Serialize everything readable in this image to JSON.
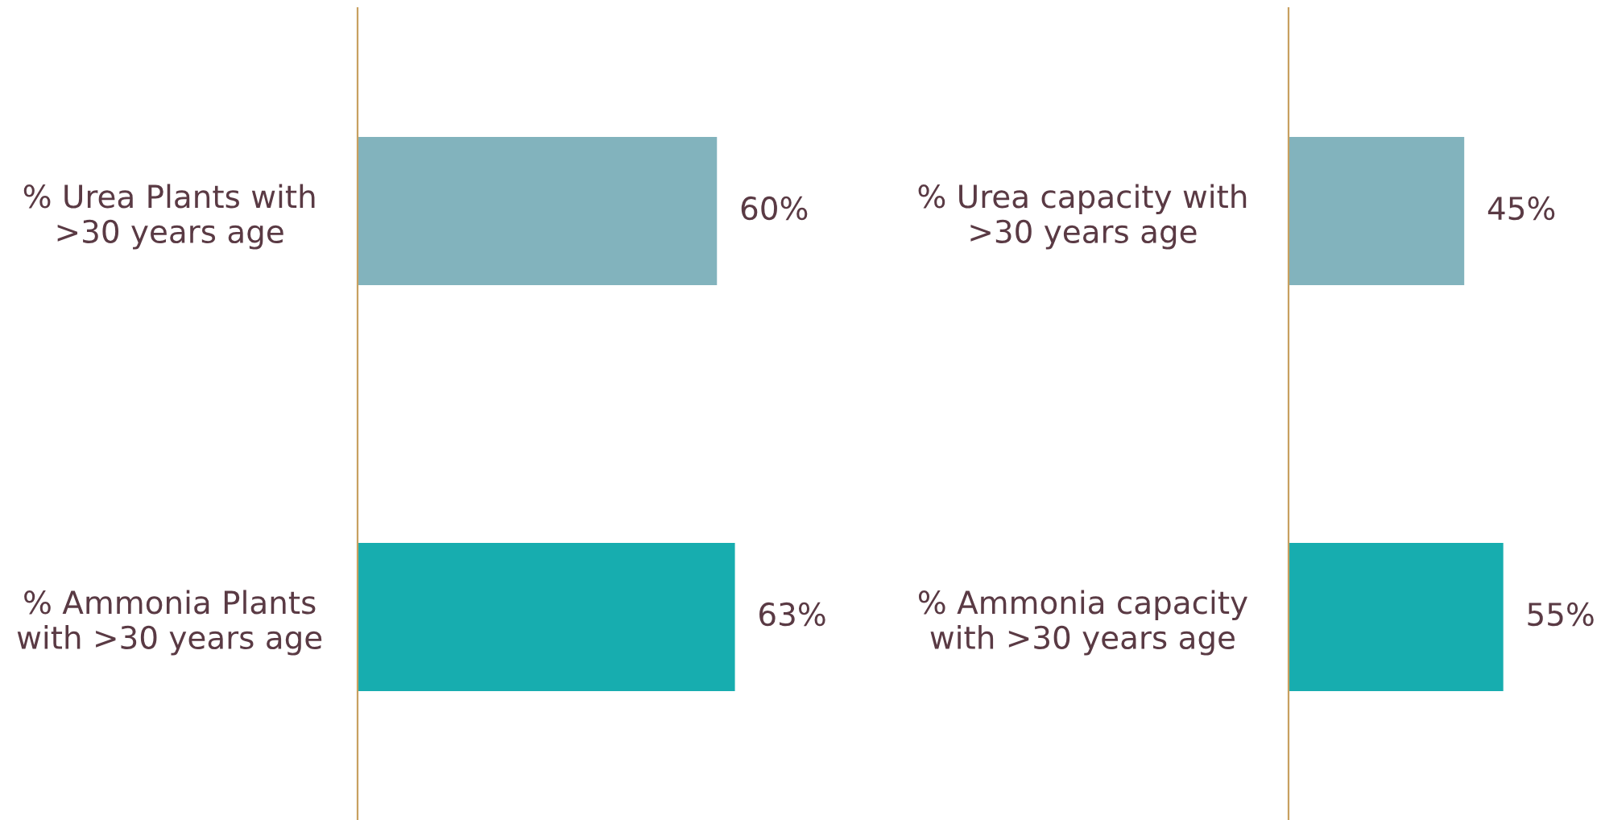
{
  "chart_data": [
    {
      "type": "bar",
      "orientation": "horizontal",
      "categories": [
        "% Urea Plants with\n>30 years age",
        "% Ammonia Plants\nwith >30 years age"
      ],
      "values": [
        60,
        63
      ],
      "colors": [
        "#82b3bd",
        "#17adaf"
      ],
      "value_labels": [
        "60%",
        "63%"
      ]
    },
    {
      "type": "bar",
      "orientation": "horizontal",
      "categories": [
        "% Urea capacity with\n>30 years age",
        "% Ammonia capacity\nwith >30 years age"
      ],
      "values": [
        45,
        55
      ],
      "colors": [
        "#82b3bd",
        "#17adaf"
      ],
      "value_labels": [
        "45%",
        "55%"
      ]
    }
  ]
}
